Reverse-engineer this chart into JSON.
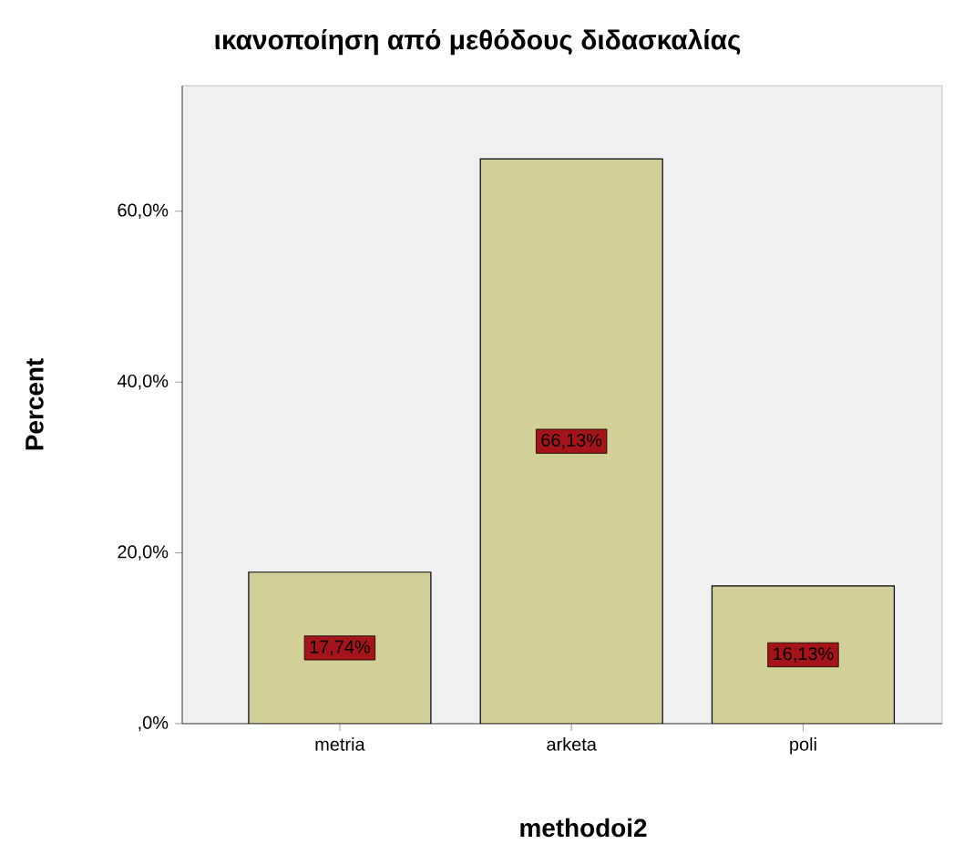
{
  "chart_data": {
    "type": "bar",
    "title": "ικανοποίηση από μεθόδους διδασκαλίας",
    "xlabel": "methodoi2",
    "ylabel": "Percent",
    "categories": [
      "metria",
      "arketa",
      "poli"
    ],
    "values": [
      17.74,
      66.13,
      16.13
    ],
    "value_labels": [
      "17,74%",
      "66,13%",
      "16,13%"
    ],
    "color": "#d3cf98",
    "ylim": [
      0,
      74.7
    ],
    "yticks": [
      {
        "value": 0,
        "label": ",0%"
      },
      {
        "value": 20,
        "label": "20,0%"
      },
      {
        "value": 40,
        "label": "40,0%"
      },
      {
        "value": 60,
        "label": "60,0%"
      }
    ]
  }
}
